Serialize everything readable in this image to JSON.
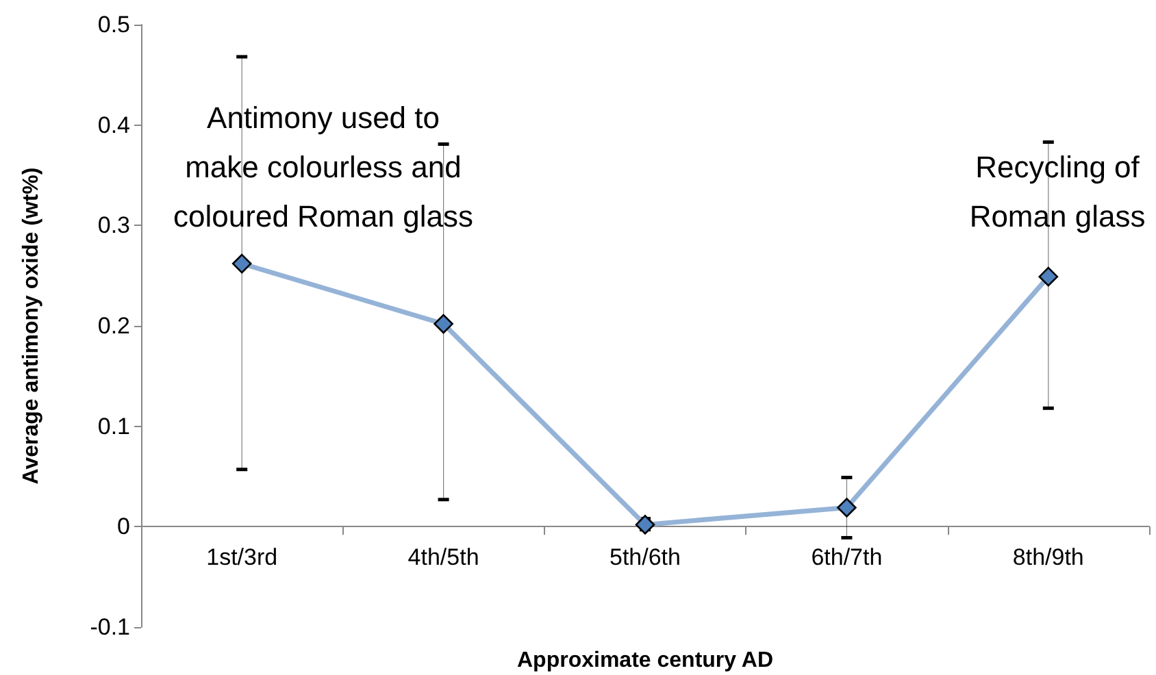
{
  "chart_data": {
    "type": "line",
    "xlabel": "Approximate century AD",
    "ylabel": "Average antimony oxide (wt%)",
    "categories": [
      "1st/3rd",
      "4th/5th",
      "5th/6th",
      "6th/7th",
      "8th/9th"
    ],
    "series": [
      {
        "color": "#95b3d7",
        "values": [
          0.262,
          0.202,
          0.002,
          0.019,
          0.249
        ],
        "errors": [
          [
            0.057,
            0.468
          ],
          [
            0.027,
            0.381
          ],
          [
            -0.003,
            0.008
          ],
          [
            -0.011,
            0.049
          ],
          [
            0.118,
            0.383
          ]
        ]
      }
    ],
    "marker": "diamond",
    "line_style": "solid",
    "grid": false,
    "ylim": [
      -0.1,
      0.5
    ],
    "yticks": [
      -0.1,
      0,
      0.1,
      0.2,
      0.3,
      0.4,
      0.5
    ],
    "annotations": [
      "Antimony used to\nmake colourless and\ncoloured Roman glass",
      "Recycling of\nRoman glass"
    ]
  }
}
